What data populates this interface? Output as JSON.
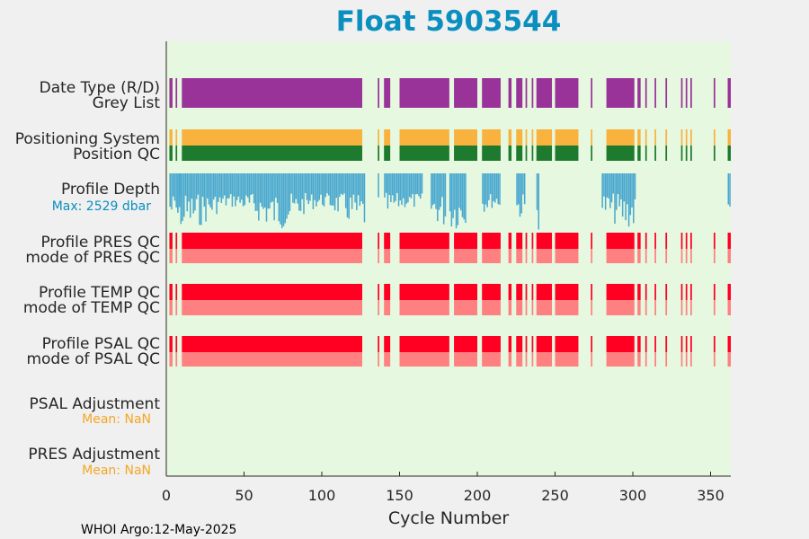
{
  "chart_data": {
    "type": "bar",
    "title": "Float 5903544",
    "xlabel": "Cycle Number",
    "xlim": [
      0,
      363
    ],
    "xticks": [
      0,
      50,
      100,
      150,
      200,
      250,
      300,
      350
    ],
    "cycle_segments": [
      [
        2,
        4
      ],
      [
        6,
        7
      ],
      [
        10,
        126
      ],
      [
        136,
        137
      ],
      [
        140,
        144
      ],
      [
        150,
        182
      ],
      [
        185,
        200
      ],
      [
        203,
        215
      ],
      [
        220,
        222
      ],
      [
        225,
        229
      ],
      [
        231,
        232
      ],
      [
        235,
        236
      ],
      [
        238,
        248
      ],
      [
        250,
        265
      ],
      [
        273,
        274
      ],
      [
        283,
        301
      ],
      [
        303,
        305
      ],
      [
        308,
        309
      ],
      [
        314,
        315
      ],
      [
        321,
        322
      ],
      [
        331,
        332
      ],
      [
        334,
        335
      ],
      [
        337,
        338
      ],
      [
        352,
        353
      ],
      [
        361,
        363
      ]
    ],
    "depth_cycles": [
      [
        2,
        10
      ],
      [
        7,
        128
      ],
      [
        136,
        137
      ],
      [
        140,
        165
      ],
      [
        170,
        180
      ],
      [
        182,
        193
      ],
      [
        203,
        215
      ],
      [
        225,
        231
      ],
      [
        238,
        240
      ],
      [
        280,
        302
      ],
      [
        361,
        363
      ]
    ],
    "depth_max": 2529,
    "colors": {
      "data_type": "#993399",
      "positioning": "#f9b23e",
      "position_qc": "#1e7a2e",
      "depth": "#4aa8cf",
      "profile_qc": "#ff0022",
      "mode_qc": "#ff8080",
      "plot_bg": "#e6f8df",
      "page_bg": "#f0f0f0"
    },
    "rows": [
      {
        "label": "Date Type (R/D)",
        "sublabel": "Grey List",
        "color_key": "data_type"
      },
      {
        "label": "Positioning System",
        "sublabel": "Position QC",
        "color_key": "positioning"
      },
      {
        "label": "Profile Depth",
        "sublabel": "Max: 2529 dbar",
        "color_key": "depth"
      },
      {
        "label": "Profile PRES QC",
        "sublabel": "mode of PRES QC",
        "color_key": "profile_qc"
      },
      {
        "label": "Profile TEMP QC",
        "sublabel": "mode of TEMP QC",
        "color_key": "profile_qc"
      },
      {
        "label": "Profile PSAL QC",
        "sublabel": "mode of PSAL QC",
        "color_key": "profile_qc"
      },
      {
        "label": "PSAL Adjustment",
        "sublabel": "Mean:  NaN",
        "color_key": ""
      },
      {
        "label": "PRES Adjustment",
        "sublabel": "Mean:  NaN",
        "color_key": ""
      }
    ]
  },
  "footer": "WHOI Argo:12-May-2025"
}
